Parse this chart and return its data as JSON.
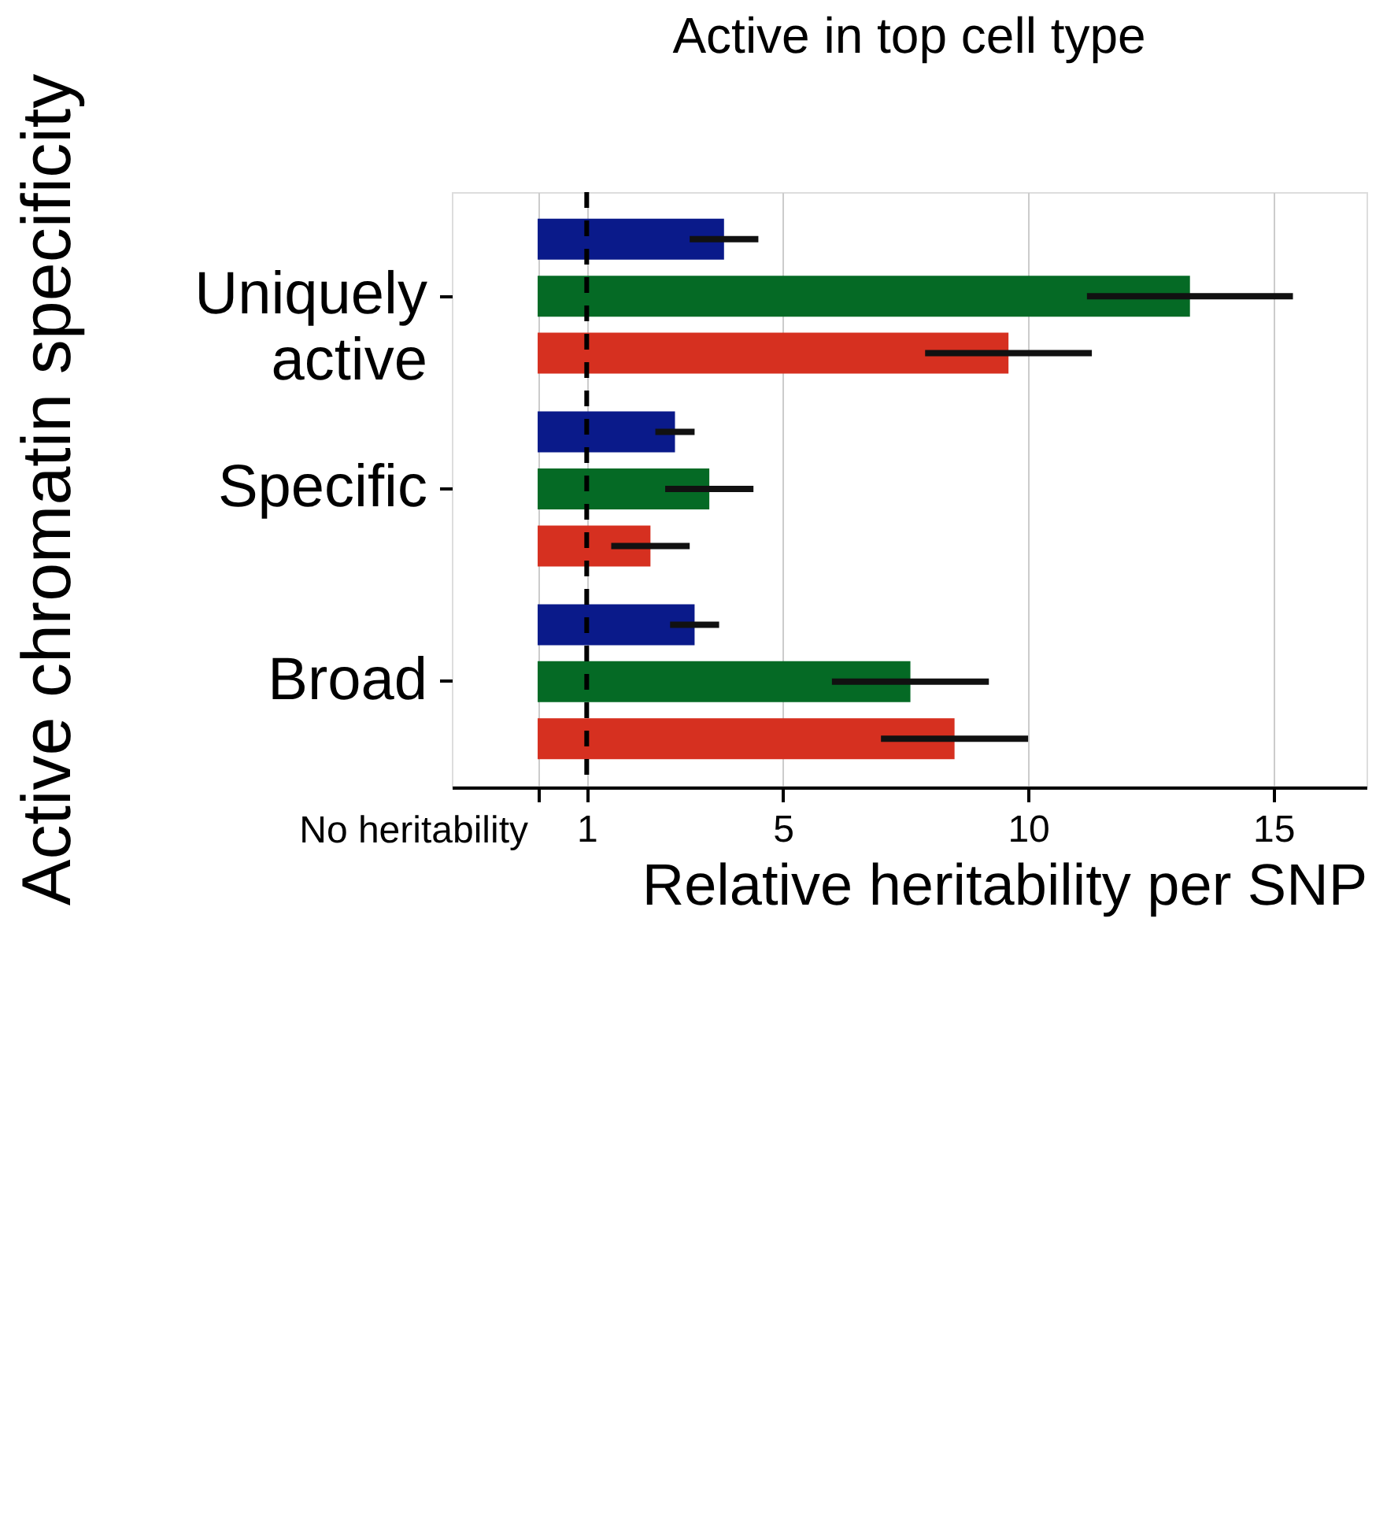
{
  "chart_data": {
    "type": "bar",
    "orientation": "horizontal",
    "title": "Active in top cell type",
    "xlabel": "Relative heritability per SNP",
    "ylabel": "Active chromatin specificity",
    "categories": [
      "Uniquely active",
      "Specific",
      "Broad"
    ],
    "series": [
      {
        "color": "#0a1a8a",
        "values": [
          3.8,
          2.8,
          3.2
        ],
        "errors": [
          0.7,
          0.4,
          0.5
        ]
      },
      {
        "color": "#056a25",
        "values": [
          13.3,
          3.5,
          7.6
        ],
        "errors": [
          2.1,
          0.9,
          1.6
        ]
      },
      {
        "color": "#d63020",
        "values": [
          9.6,
          2.3,
          8.5
        ],
        "errors": [
          1.7,
          0.8,
          1.5
        ]
      }
    ],
    "xlim": [
      -1.75,
      16.9
    ],
    "xticks": [
      {
        "value": 0,
        "label": null
      },
      1,
      5,
      10,
      15
    ],
    "annotations": [
      "No heritability"
    ],
    "ref_lines": [
      {
        "axis": "x",
        "value": 1,
        "line_style": "dashed",
        "color": "#000000"
      }
    ],
    "grid": "x",
    "legend": false
  }
}
